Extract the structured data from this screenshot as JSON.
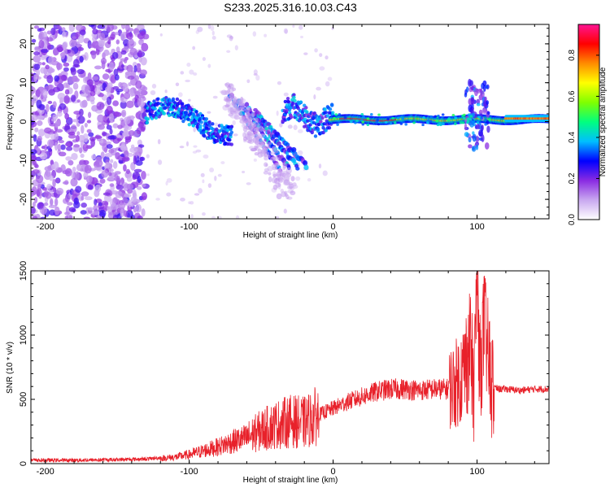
{
  "title": "S233.2025.316.10.03.C43",
  "chart_data": [
    {
      "type": "heatmap",
      "name": "spectrogram",
      "xlabel": "Height of straight line (km)",
      "ylabel": "Frequency (Hz)",
      "xlim": [
        -210,
        150
      ],
      "ylim": [
        -25,
        25
      ],
      "xticks": [
        -200,
        -100,
        0,
        100
      ],
      "yticks": [
        -20,
        -10,
        0,
        10,
        20
      ],
      "colorbar": {
        "label": "Normalized spectral amplitude",
        "range": [
          0.0,
          0.95
        ],
        "ticks": [
          0.0,
          0.2,
          0.4,
          0.6,
          0.8
        ],
        "tick_labels": [
          "0.0",
          "0.2",
          "0.4",
          "0.6",
          "0.8"
        ],
        "colors": [
          "#ffffff",
          "#c9a8f0",
          "#8a2be2",
          "#0000ff",
          "#00bfff",
          "#00ff7f",
          "#7fff00",
          "#ffff00",
          "#ff8c00",
          "#ff0000",
          "#ff1493"
        ]
      },
      "features": [
        {
          "label": "noise",
          "x_range": [
            -210,
            -130
          ],
          "f_range": [
            -25,
            25
          ],
          "level": 0.15
        },
        {
          "label": "main trace",
          "x_range": [
            -130,
            150
          ],
          "f_center": 0.5,
          "level": 0.6
        },
        {
          "label": "fan branch",
          "x_range": [
            -75,
            -35
          ],
          "f_range": [
            -20,
            8
          ],
          "level": 0.25
        }
      ]
    },
    {
      "type": "line",
      "name": "snr",
      "xlabel": "Height of straight line (km)",
      "ylabel": "SNR (10 * v/v)",
      "xlim": [
        -210,
        150
      ],
      "ylim": [
        0,
        1500
      ],
      "xticks": [
        -200,
        -100,
        0,
        100
      ],
      "yticks": [
        0,
        500,
        1000,
        1500
      ],
      "color": "#e8212a",
      "series": [
        {
          "name": "SNR",
          "x": [
            -210,
            -180,
            -150,
            -130,
            -110,
            -100,
            -90,
            -80,
            -70,
            -60,
            -50,
            -40,
            -30,
            -20,
            -10,
            0,
            10,
            20,
            30,
            40,
            50,
            60,
            70,
            80,
            85,
            90,
            95,
            98,
            100,
            102,
            105,
            108,
            110,
            115,
            120,
            130,
            140,
            150
          ],
          "values": [
            20,
            20,
            25,
            30,
            50,
            70,
            100,
            130,
            170,
            200,
            260,
            300,
            330,
            320,
            380,
            430,
            480,
            520,
            560,
            580,
            580,
            570,
            580,
            580,
            620,
            700,
            900,
            600,
            1450,
            700,
            1100,
            800,
            600,
            580,
            580,
            570,
            580,
            580
          ]
        }
      ]
    }
  ]
}
